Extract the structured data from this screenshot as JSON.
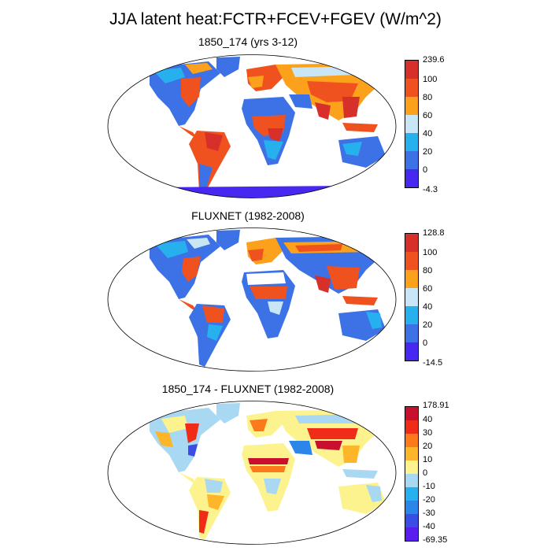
{
  "title": "JJA latent heat:FCTR+FCEV+FGEV (W/m^2)",
  "panels": [
    {
      "id": "model",
      "title": "1850_174 (yrs 3-12)",
      "colorbar": {
        "labels": [
          "239.6",
          "100",
          "80",
          "60",
          "40",
          "20",
          "0",
          "-4.3"
        ],
        "colors": [
          "#d7302a",
          "#f0521f",
          "#fca11c",
          "#c8e6f5",
          "#26b1ee",
          "#3c72e6",
          "#4628f0"
        ]
      }
    },
    {
      "id": "fluxnet",
      "title": "FLUXNET (1982-2008)",
      "colorbar": {
        "labels": [
          "128.8",
          "100",
          "80",
          "60",
          "40",
          "20",
          "0",
          "-14.5"
        ],
        "colors": [
          "#d7302a",
          "#f0521f",
          "#fca11c",
          "#c8e6f5",
          "#26b1ee",
          "#3c72e6",
          "#4628f0"
        ]
      }
    },
    {
      "id": "difference",
      "title": "1850_174 - FLUXNET (1982-2008)",
      "colorbar": {
        "labels": [
          "178.91",
          "40",
          "30",
          "20",
          "10",
          "0",
          "-10",
          "-20",
          "-30",
          "-40",
          "-69.35"
        ],
        "colors": [
          "#c8102e",
          "#f02c18",
          "#fc7a1a",
          "#fdb52a",
          "#fdf38e",
          "#a9d8f2",
          "#26b1ee",
          "#2c86ea",
          "#3c4de6",
          "#5a1df0"
        ]
      }
    }
  ]
}
